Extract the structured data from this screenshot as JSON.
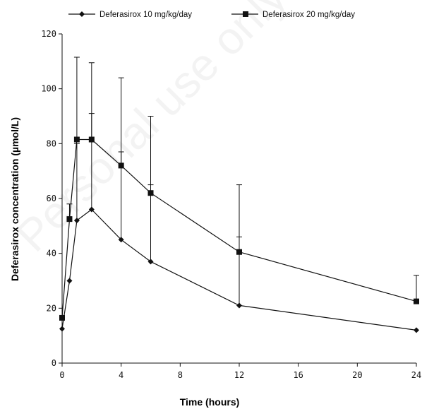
{
  "watermark": "Personal use only",
  "chart_data": {
    "type": "line",
    "title": "",
    "xlabel": "Time (hours)",
    "ylabel": "Deferasirox concentration (µmol/L)",
    "xlim": [
      0,
      24
    ],
    "ylim": [
      0,
      120
    ],
    "xticks": [
      0,
      4,
      8,
      12,
      16,
      20,
      24
    ],
    "yticks": [
      0,
      20,
      40,
      60,
      80,
      100,
      120
    ],
    "grid": false,
    "legend_position": "top",
    "series": [
      {
        "name": "Deferasirox 10 mg/kg/day",
        "marker": "diamond",
        "color": "#111111",
        "x": [
          0,
          0.5,
          1,
          2,
          4,
          6,
          12,
          24
        ],
        "y": [
          12.5,
          30,
          52,
          56,
          45,
          37,
          21,
          12
        ],
        "error_upper": [
          null,
          null,
          80,
          91,
          77,
          65,
          46,
          null
        ]
      },
      {
        "name": "Deferasirox 20 mg/kg/day",
        "marker": "square",
        "color": "#111111",
        "x": [
          0,
          0.5,
          1,
          2,
          4,
          6,
          12,
          24
        ],
        "y": [
          16.5,
          52.5,
          81.5,
          81.5,
          72,
          62,
          40.5,
          22.5
        ],
        "error_upper": [
          null,
          58,
          111.5,
          109.5,
          104,
          90,
          65,
          32
        ]
      }
    ]
  }
}
